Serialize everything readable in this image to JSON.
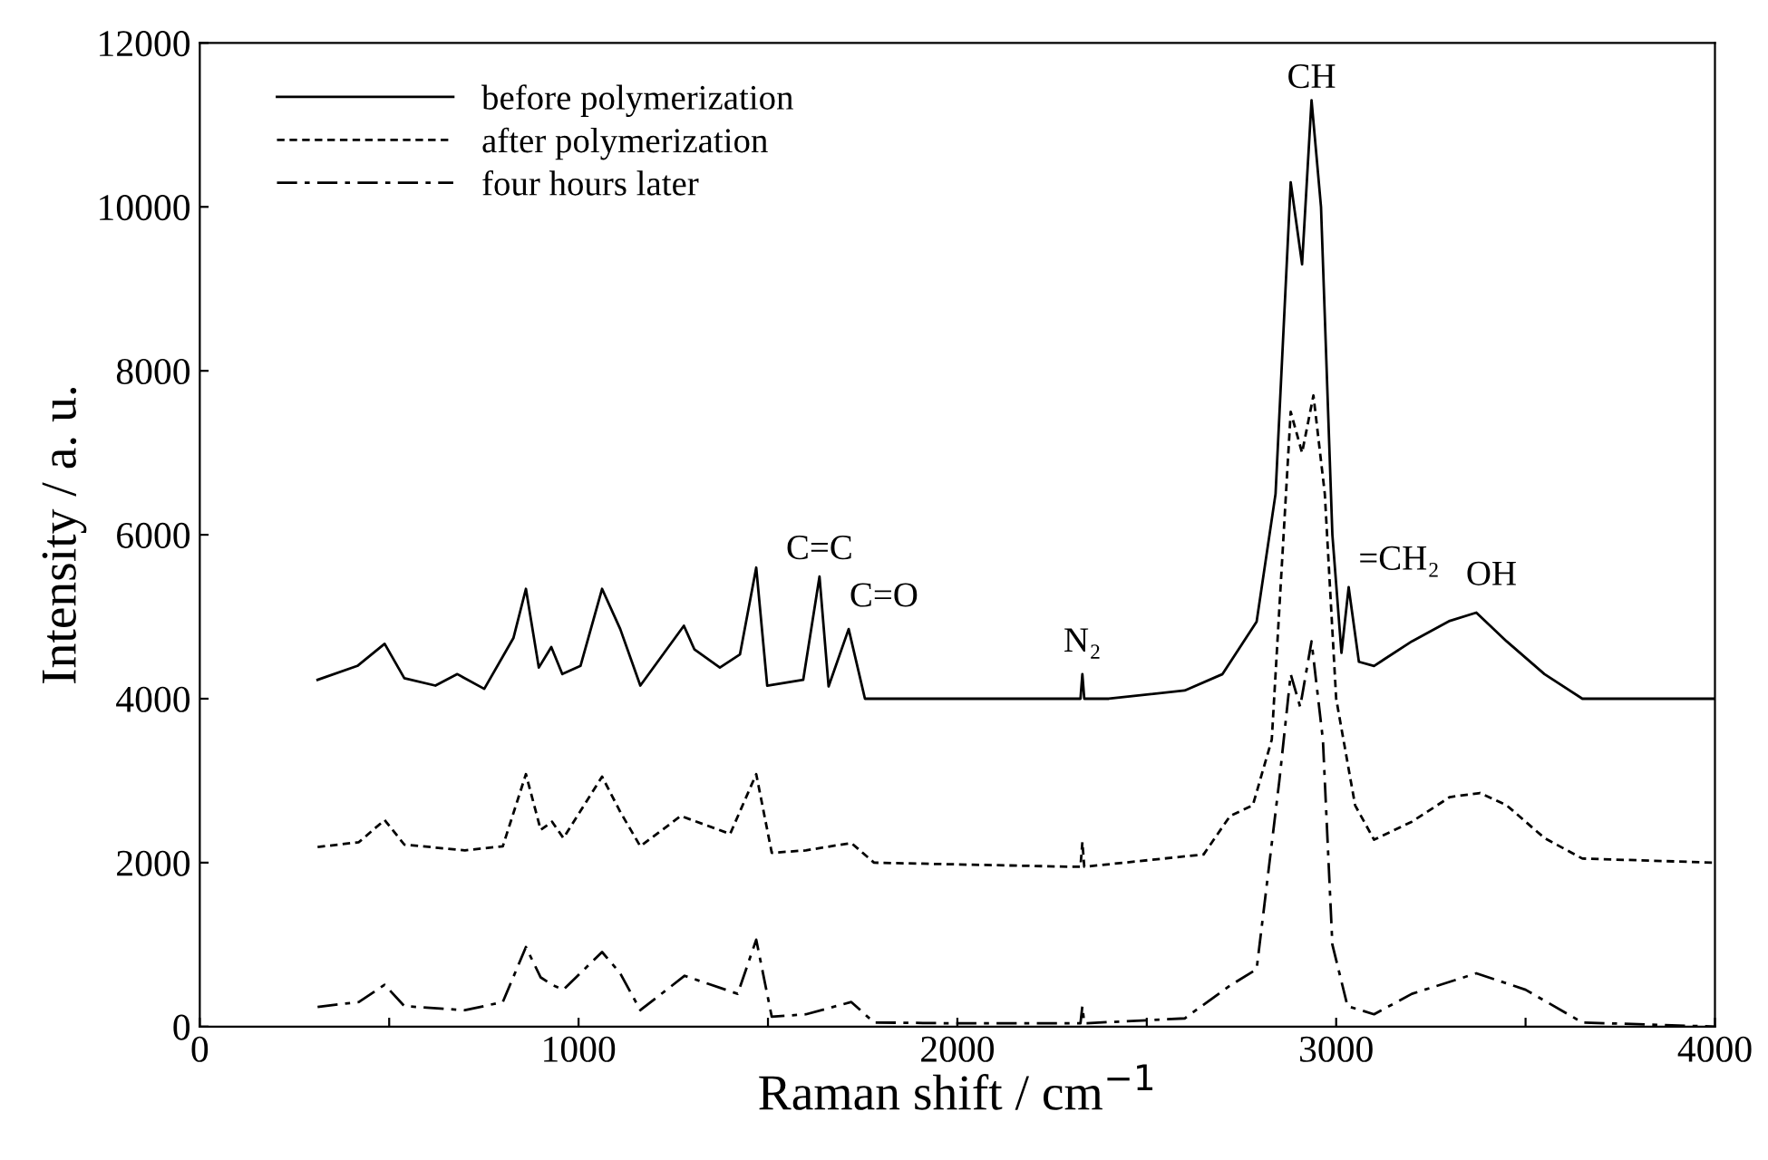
{
  "chart_data": {
    "type": "line",
    "xlabel": "Raman shift / cm$^{−1}$",
    "ylabel": "Intensity / a. u.",
    "xlim": [
      0,
      4000
    ],
    "ylim": [
      0,
      12000
    ],
    "xticks": [
      0,
      {
        "value": 500,
        "label": null
      },
      1000,
      {
        "value": 1500,
        "label": null
      },
      2000,
      {
        "value": 2500,
        "label": null
      },
      3000,
      {
        "value": 3500,
        "label": null
      },
      4000
    ],
    "yticks": [
      0,
      2000,
      4000,
      6000,
      8000,
      10000,
      12000
    ],
    "grid": false,
    "legend": "top left",
    "marker": "none",
    "annotations": [
      {
        "text": "C=C",
        "x": 1636,
        "y": 5490
      },
      {
        "text": "C=O",
        "x": 1713,
        "y": 4850
      },
      {
        "text": "N₂",
        "x": 2330,
        "y": 4300
      },
      {
        "text": "CH",
        "x": 2935,
        "y": 11300
      },
      {
        "text": "=CH₂",
        "x": 3033,
        "y": 5360
      },
      {
        "text": "OH",
        "x": 3370,
        "y": 5050
      }
    ],
    "series": [
      {
        "name": "before polymerization",
        "color": "#000000",
        "line_style": "solid",
        "x": [
          311,
          416,
          488,
          540,
          622,
          680,
          751,
          828,
          861,
          895,
          928,
          957,
          1005,
          1062,
          1110,
          1163,
          1278,
          1306,
          1373,
          1426,
          1469,
          1498,
          1593,
          1636,
          1660,
          1713,
          1756,
          1900,
          2300,
          2325,
          2330,
          2335,
          2400,
          2600,
          2700,
          2790,
          2840,
          2880,
          2910,
          2935,
          2960,
          2990,
          3014,
          3033,
          3060,
          3100,
          3200,
          3300,
          3370,
          3450,
          3550,
          3650,
          4000
        ],
        "values": [
          4230,
          4400,
          4670,
          4250,
          4160,
          4300,
          4120,
          4740,
          5340,
          4380,
          4630,
          4300,
          4400,
          5340,
          4850,
          4160,
          4890,
          4600,
          4380,
          4540,
          5600,
          4160,
          4230,
          5490,
          4150,
          4850,
          4000,
          4000,
          4000,
          4000,
          4300,
          4000,
          4000,
          4100,
          4300,
          4940,
          6500,
          10300,
          9300,
          11300,
          10000,
          6000,
          4560,
          5360,
          4450,
          4400,
          4700,
          4950,
          5050,
          4700,
          4300,
          4000,
          4000
        ]
      },
      {
        "name": "after polymerization",
        "color": "#000000",
        "line_style": "dashed",
        "x": [
          311,
          420,
          488,
          540,
          700,
          800,
          861,
          900,
          930,
          960,
          1062,
          1110,
          1163,
          1270,
          1400,
          1469,
          1510,
          1600,
          1720,
          1780,
          2300,
          2325,
          2330,
          2335,
          2650,
          2720,
          2780,
          2830,
          2880,
          2910,
          2940,
          2970,
          3000,
          3050,
          3100,
          3200,
          3300,
          3380,
          3450,
          3550,
          3650,
          4000
        ],
        "values": [
          2190,
          2250,
          2520,
          2220,
          2150,
          2200,
          3080,
          2400,
          2500,
          2300,
          3050,
          2620,
          2200,
          2570,
          2350,
          3080,
          2120,
          2150,
          2240,
          2000,
          1950,
          1950,
          2250,
          1950,
          2100,
          2570,
          2700,
          3500,
          7500,
          7000,
          7700,
          6500,
          4000,
          2700,
          2280,
          2500,
          2800,
          2850,
          2700,
          2300,
          2050,
          2000
        ]
      },
      {
        "name": "four hours later",
        "color": "#000000",
        "line_style": "dashdot",
        "x": [
          311,
          420,
          488,
          540,
          700,
          800,
          861,
          900,
          930,
          960,
          1062,
          1110,
          1163,
          1280,
          1420,
          1469,
          1510,
          1600,
          1720,
          1780,
          2000,
          2325,
          2330,
          2335,
          2600,
          2720,
          2790,
          2850,
          2880,
          2905,
          2935,
          2965,
          2990,
          3030,
          3100,
          3200,
          3370,
          3500,
          3650,
          4000
        ],
        "values": [
          240,
          300,
          510,
          250,
          200,
          300,
          970,
          600,
          510,
          450,
          910,
          650,
          200,
          620,
          400,
          1060,
          120,
          150,
          300,
          50,
          40,
          40,
          250,
          40,
          100,
          500,
          700,
          3000,
          4300,
          3900,
          4700,
          3500,
          1000,
          250,
          150,
          400,
          650,
          450,
          50,
          0
        ]
      }
    ]
  }
}
